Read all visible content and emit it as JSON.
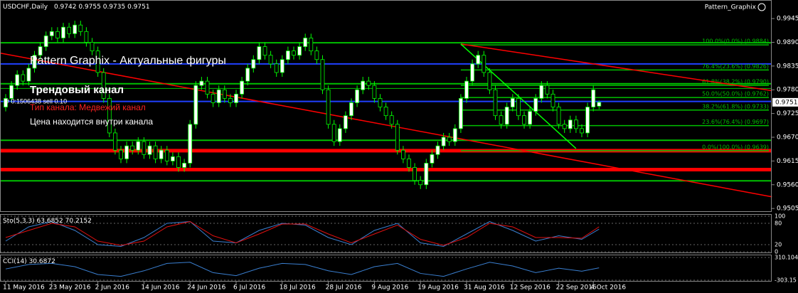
{
  "chart_data": {
    "type": "candlestick",
    "symbol": "USDCHF,Daily",
    "open": [
      0.974,
      0.976,
      0.979,
      0.9815,
      0.98,
      0.983,
      0.986,
      0.988,
      0.9905,
      0.9915,
      0.99,
      0.9925,
      0.991,
      0.993,
      0.9915,
      0.989,
      0.987,
      0.982,
      0.976,
      0.968,
      0.964,
      0.962,
      0.965,
      0.964,
      0.966,
      0.963,
      0.965,
      0.962,
      0.964,
      0.9615,
      0.9625,
      0.96,
      0.961,
      0.97,
      0.979,
      0.98,
      0.977,
      0.975,
      0.978,
      0.976,
      0.975,
      0.977,
      0.98,
      0.983,
      0.985,
      0.988,
      0.986,
      0.984,
      0.982,
      0.985,
      0.987,
      0.986,
      0.988,
      0.99,
      0.987,
      0.985,
      0.978,
      0.97,
      0.966,
      0.969,
      0.972,
      0.975,
      0.978,
      0.98,
      0.979,
      0.976,
      0.974,
      0.972,
      0.97,
      0.964,
      0.962,
      0.96,
      0.957,
      0.956,
      0.961,
      0.963,
      0.965,
      0.967,
      0.966,
      0.969,
      0.976,
      0.98,
      0.984,
      0.986,
      0.982,
      0.978,
      0.972,
      0.97,
      0.974,
      0.976,
      0.972,
      0.97,
      0.973,
      0.976,
      0.979,
      0.977,
      0.974,
      0.97,
      0.969,
      0.971,
      0.969,
      0.968,
      0.974,
      0.9742
    ],
    "high": [
      0.977,
      0.98,
      0.9825,
      0.9825,
      0.984,
      0.987,
      0.989,
      0.9915,
      0.9925,
      0.9925,
      0.9935,
      0.9935,
      0.994,
      0.994,
      0.9925,
      0.99,
      0.988,
      0.983,
      0.977,
      0.969,
      0.965,
      0.966,
      0.966,
      0.967,
      0.967,
      0.966,
      0.966,
      0.965,
      0.965,
      0.9635,
      0.9635,
      0.962,
      0.971,
      0.98,
      0.981,
      0.981,
      0.978,
      0.979,
      0.979,
      0.977,
      0.978,
      0.981,
      0.984,
      0.986,
      0.989,
      0.989,
      0.987,
      0.985,
      0.986,
      0.988,
      0.988,
      0.989,
      0.991,
      0.991,
      0.988,
      0.986,
      0.979,
      0.971,
      0.97,
      0.973,
      0.976,
      0.979,
      0.981,
      0.981,
      0.98,
      0.977,
      0.975,
      0.973,
      0.971,
      0.965,
      0.963,
      0.961,
      0.958,
      0.962,
      0.964,
      0.966,
      0.968,
      0.968,
      0.97,
      0.977,
      0.981,
      0.985,
      0.987,
      0.987,
      0.983,
      0.979,
      0.973,
      0.975,
      0.977,
      0.977,
      0.973,
      0.974,
      0.977,
      0.98,
      0.98,
      0.978,
      0.975,
      0.971,
      0.972,
      0.972,
      0.97,
      0.975,
      0.979,
      0.9755
    ],
    "low": [
      0.973,
      0.975,
      0.978,
      0.979,
      0.979,
      0.982,
      0.985,
      0.987,
      0.9895,
      0.989,
      0.989,
      0.99,
      0.99,
      0.9905,
      0.988,
      0.986,
      0.981,
      0.975,
      0.967,
      0.963,
      0.961,
      0.961,
      0.963,
      0.963,
      0.962,
      0.962,
      0.961,
      0.961,
      0.9605,
      0.9605,
      0.959,
      0.959,
      0.96,
      0.969,
      0.978,
      0.976,
      0.974,
      0.974,
      0.975,
      0.974,
      0.974,
      0.976,
      0.979,
      0.982,
      0.984,
      0.985,
      0.983,
      0.981,
      0.981,
      0.984,
      0.985,
      0.985,
      0.987,
      0.986,
      0.984,
      0.977,
      0.969,
      0.965,
      0.965,
      0.968,
      0.971,
      0.974,
      0.977,
      0.978,
      0.975,
      0.973,
      0.971,
      0.969,
      0.963,
      0.961,
      0.959,
      0.956,
      0.955,
      0.955,
      0.96,
      0.962,
      0.964,
      0.965,
      0.965,
      0.968,
      0.975,
      0.979,
      0.983,
      0.981,
      0.977,
      0.971,
      0.969,
      0.969,
      0.973,
      0.971,
      0.969,
      0.969,
      0.972,
      0.975,
      0.976,
      0.973,
      0.969,
      0.968,
      0.968,
      0.968,
      0.967,
      0.967,
      0.973,
      0.9735
    ],
    "close": [
      0.976,
      0.979,
      0.9815,
      0.98,
      0.983,
      0.986,
      0.988,
      0.9905,
      0.9915,
      0.99,
      0.9925,
      0.991,
      0.993,
      0.9915,
      0.989,
      0.987,
      0.982,
      0.976,
      0.968,
      0.964,
      0.962,
      0.965,
      0.964,
      0.966,
      0.963,
      0.965,
      0.962,
      0.964,
      0.9615,
      0.9625,
      0.96,
      0.961,
      0.97,
      0.979,
      0.98,
      0.977,
      0.975,
      0.978,
      0.976,
      0.975,
      0.977,
      0.98,
      0.983,
      0.985,
      0.988,
      0.986,
      0.984,
      0.982,
      0.985,
      0.987,
      0.986,
      0.988,
      0.99,
      0.987,
      0.985,
      0.978,
      0.97,
      0.966,
      0.969,
      0.972,
      0.975,
      0.978,
      0.98,
      0.979,
      0.976,
      0.974,
      0.972,
      0.97,
      0.964,
      0.962,
      0.96,
      0.957,
      0.956,
      0.961,
      0.963,
      0.965,
      0.967,
      0.966,
      0.969,
      0.976,
      0.98,
      0.984,
      0.986,
      0.982,
      0.978,
      0.972,
      0.97,
      0.974,
      0.976,
      0.972,
      0.97,
      0.973,
      0.976,
      0.979,
      0.977,
      0.974,
      0.97,
      0.969,
      0.971,
      0.969,
      0.968,
      0.974,
      0.978,
      0.9751
    ],
    "candle_color": "#00ff00",
    "bull_fill": "#ffffff",
    "bear_fill": "#000000",
    "ylim": [
      0.9497,
      0.9988
    ],
    "yticks": [
      0.9945,
      {
        "value": 0.989,
        "label": "0.9890"
      },
      0.9835,
      {
        "value": 0.978,
        "label": "0.9780"
      },
      0.9725,
      {
        "value": 0.967,
        "label": "0.9670"
      },
      0.9615,
      {
        "value": 0.956,
        "label": "0.9560"
      },
      0.9505
    ],
    "xticks": [
      {
        "value": 0,
        "label": "11 May 2016"
      },
      {
        "value": 8,
        "label": "23 May 2016"
      },
      {
        "value": 16,
        "label": "2 Jun 2016"
      },
      {
        "value": 24,
        "label": "14 Jun 2016"
      },
      {
        "value": 32,
        "label": "24 Jun 2016"
      },
      {
        "value": 40,
        "label": "6 Jul 2016"
      },
      {
        "value": 48,
        "label": "18 Jul 2016"
      },
      {
        "value": 56,
        "label": "28 Jul 2016"
      },
      {
        "value": 64,
        "label": "9 Aug 2016"
      },
      {
        "value": 72,
        "label": "19 Aug 2016"
      },
      {
        "value": 80,
        "label": "31 Aug 2016"
      },
      {
        "value": 88,
        "label": "12 Sep 2016"
      },
      {
        "value": 96,
        "label": "22 Sep 2016"
      },
      {
        "value": 102,
        "label": "4 Oct 2016"
      }
    ],
    "grid": false,
    "levels": [
      {
        "value": 0.9889,
        "color": "#00c000",
        "width": 2
      },
      {
        "value": 0.984,
        "color": "#2040ff",
        "width": 2
      },
      {
        "value": 0.9794,
        "color": "#00c000",
        "width": 2
      },
      {
        "value": 0.9783,
        "color": "#00c000",
        "width": 1
      },
      {
        "value": 0.9753,
        "color": "#2040ff",
        "width": 2
      },
      {
        "value": 0.9663,
        "color": "#00c000",
        "width": 2
      },
      {
        "value": 0.9639,
        "color": "#ff0000",
        "width": 5
      },
      {
        "value": 0.9595,
        "color": "#ff0000",
        "width": 5
      },
      {
        "value": 0.9569,
        "color": "#00c000",
        "width": 2
      }
    ],
    "lines": [
      {
        "color": "#ff0000",
        "from": [
          -1,
          0.9865
        ],
        "to": [
          133,
          0.9532
        ]
      },
      {
        "color": "#ff0000",
        "from": [
          79,
          0.9886
        ],
        "to": [
          133,
          0.9778
        ]
      },
      {
        "color": "#00ff00",
        "from": [
          79,
          0.9886
        ],
        "to": [
          99,
          0.9644
        ]
      }
    ],
    "fib": {
      "start": 79,
      "color": "#00c000",
      "levels": [
        {
          "value": 0.9884,
          "label": "100.0%(0.0%) (0.9884)"
        },
        {
          "value": 0.9826,
          "label": "76.4%(23.6%) (0.9826)"
        },
        {
          "value": 0.979,
          "label": "61.8%(38.2%) (0.9790)"
        },
        {
          "value": 0.9762,
          "label": "50.0%(50.0%) (0.9762)"
        },
        {
          "value": 0.9733,
          "label": "38.2%(61.8%) (0.9733)"
        },
        {
          "value": 0.9697,
          "label": "23.6%(76.4%) (0.9697)"
        },
        {
          "value": 0.9639,
          "label": "0.0%(100.0%) (0.9639)"
        }
      ]
    },
    "annotations": {
      "brand": "Pattern_Graphix",
      "heading": "Pattern Graphix - Актуальные фигуры",
      "pattern": "Трендовый канал",
      "channel_type": "Тип канала: Медвежий канал",
      "status": "Цена находится внутри канала",
      "order": "# 0:1506438 sell 0.10"
    },
    "stochastic": {
      "label": "Sto(5,3,3)",
      "x": [
        0,
        4,
        8,
        12,
        16,
        20,
        24,
        28,
        32,
        36,
        40,
        44,
        48,
        52,
        56,
        60,
        64,
        68,
        72,
        76,
        80,
        84,
        88,
        92,
        96,
        100,
        103
      ],
      "series": [
        {
          "color": "#3a7fd0",
          "values": [
            30,
            70,
            85,
            60,
            20,
            15,
            40,
            80,
            85,
            30,
            25,
            60,
            80,
            75,
            40,
            20,
            60,
            80,
            25,
            15,
            50,
            85,
            60,
            30,
            45,
            35,
            63.6852
          ]
        },
        {
          "color": "#e01010",
          "values": [
            40,
            60,
            80,
            70,
            30,
            18,
            30,
            70,
            85,
            45,
            25,
            50,
            78,
            78,
            50,
            25,
            50,
            75,
            35,
            18,
            40,
            80,
            70,
            40,
            40,
            38,
            70.2152
          ]
        }
      ],
      "ylim": [
        0,
        100
      ],
      "yticks": [
        0,
        20,
        80,
        100
      ]
    },
    "cci": {
      "label": "CCI(14)",
      "x": [
        0,
        4,
        8,
        12,
        16,
        20,
        24,
        28,
        32,
        36,
        40,
        44,
        48,
        52,
        56,
        60,
        64,
        68,
        72,
        76,
        80,
        84,
        88,
        92,
        96,
        100,
        103
      ],
      "series": [
        {
          "color": "#3a7fd0",
          "values": [
            0,
            120,
            150,
            60,
            -150,
            -200,
            -50,
            150,
            180,
            -100,
            -180,
            20,
            150,
            120,
            -50,
            -150,
            60,
            150,
            -120,
            -200,
            0,
            180,
            80,
            -100,
            20,
            -60,
            30.6872
          ]
        }
      ],
      "ylim": [
        -303.15,
        310.1048
      ],
      "yticks": [
        310.1048,
        -303.15
      ]
    }
  }
}
